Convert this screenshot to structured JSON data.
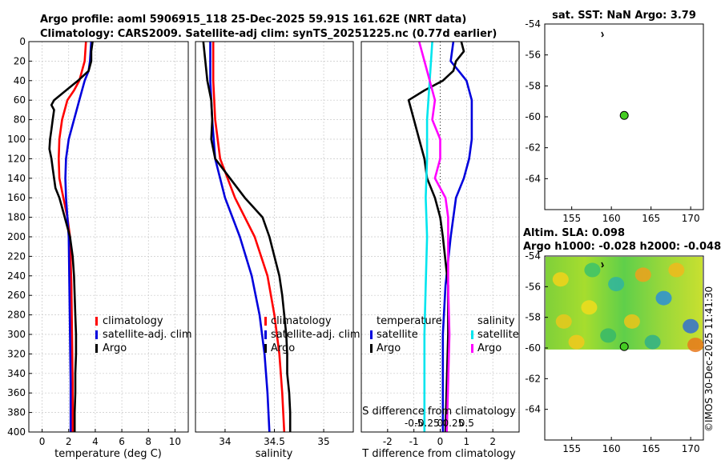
{
  "header": {
    "title_line1": "Argo profile: aoml 5906915_118 25-Dec-2025 59.91S 161.62E (NRT data)",
    "title_line2": "Climatology: CARS2009. Satellite-adj clim: synTS_20251225.nc (0.77d earlier)"
  },
  "colors": {
    "climatology": "#ff0000",
    "satellite": "#0000dd",
    "argo": "#000000",
    "sat_salinity": "#00e5ee",
    "clim_salinity": "#ff00ff",
    "marker": "#44cc22"
  },
  "watermark": "©IMOS 30-Dec-2025 11:41:30",
  "chart_data": [
    {
      "id": "temperature",
      "type": "line",
      "xlabel": "temperature (deg C)",
      "xlim": [
        -1,
        11
      ],
      "ylim": [
        0,
        400
      ],
      "y_inverted": true,
      "xticks": [
        0,
        2,
        4,
        6,
        8,
        10
      ],
      "xticklabels": [
        "0",
        "2",
        "4",
        "6",
        "8",
        "10"
      ],
      "yticks": [
        0,
        20,
        40,
        60,
        80,
        100,
        120,
        140,
        160,
        180,
        200,
        220,
        240,
        260,
        280,
        300,
        320,
        340,
        360,
        380,
        400
      ],
      "legend": {
        "position": "lower-right",
        "entries": [
          "climatology",
          "satellite-adj. clim",
          "Argo"
        ]
      },
      "series": [
        {
          "name": "climatology",
          "color": "#ff0000",
          "depth": [
            0,
            20,
            40,
            50,
            60,
            80,
            100,
            120,
            140,
            160,
            180,
            200,
            250,
            300,
            350,
            400
          ],
          "values": [
            3.3,
            3.2,
            2.8,
            2.4,
            1.9,
            1.5,
            1.3,
            1.25,
            1.3,
            1.6,
            1.9,
            2.1,
            2.2,
            2.25,
            2.3,
            2.3
          ]
        },
        {
          "name": "satellite-adj. clim",
          "color": "#0000dd",
          "depth": [
            0,
            20,
            30,
            40,
            60,
            80,
            100,
            120,
            140,
            160,
            180,
            200,
            250,
            300,
            350,
            400
          ],
          "values": [
            3.7,
            3.6,
            3.5,
            3.2,
            2.8,
            2.4,
            2.0,
            1.8,
            1.75,
            1.8,
            1.9,
            2.0,
            2.05,
            2.1,
            2.15,
            2.15
          ]
        },
        {
          "name": "Argo",
          "color": "#000000",
          "depth": [
            0,
            10,
            20,
            30,
            40,
            50,
            60,
            65,
            70,
            80,
            90,
            100,
            110,
            120,
            130,
            140,
            150,
            160,
            170,
            180,
            190,
            200,
            220,
            240,
            260,
            280,
            300,
            320,
            340,
            360,
            380,
            400
          ],
          "values": [
            3.8,
            3.7,
            3.7,
            3.5,
            2.7,
            1.8,
            0.9,
            0.7,
            0.9,
            0.8,
            0.7,
            0.6,
            0.55,
            0.7,
            0.8,
            0.9,
            1.0,
            1.3,
            1.5,
            1.7,
            1.9,
            2.1,
            2.3,
            2.4,
            2.45,
            2.5,
            2.55,
            2.55,
            2.5,
            2.5,
            2.45,
            2.45
          ]
        }
      ]
    },
    {
      "id": "salinity",
      "type": "line",
      "xlabel": "salinity",
      "xlim": [
        33.7,
        35.3
      ],
      "ylim": [
        0,
        400
      ],
      "y_inverted": true,
      "xticks": [
        34,
        34.5,
        35
      ],
      "xticklabels": [
        "34",
        "34.5",
        "35"
      ],
      "legend": {
        "position": "lower-right",
        "entries": [
          "climatology",
          "satellite-adj. clim",
          "Argo"
        ]
      },
      "series": [
        {
          "name": "climatology",
          "color": "#ff0000",
          "depth": [
            0,
            40,
            80,
            120,
            160,
            200,
            240,
            280,
            320,
            360,
            400
          ],
          "values": [
            33.88,
            33.88,
            33.9,
            33.95,
            34.1,
            34.3,
            34.43,
            34.5,
            34.55,
            34.58,
            34.6
          ]
        },
        {
          "name": "satellite-adj. clim",
          "color": "#0000dd",
          "depth": [
            0,
            40,
            80,
            120,
            160,
            200,
            240,
            280,
            320,
            360,
            400
          ],
          "values": [
            33.85,
            33.85,
            33.87,
            33.9,
            34.0,
            34.15,
            34.27,
            34.35,
            34.4,
            34.43,
            34.45
          ]
        },
        {
          "name": "Argo",
          "color": "#000000",
          "depth": [
            0,
            20,
            40,
            60,
            80,
            100,
            120,
            140,
            160,
            180,
            200,
            220,
            240,
            260,
            280,
            300,
            320,
            340,
            360,
            380,
            400
          ],
          "values": [
            33.78,
            33.8,
            33.82,
            33.86,
            33.87,
            33.86,
            33.9,
            34.05,
            34.2,
            34.38,
            34.45,
            34.5,
            34.55,
            34.58,
            34.6,
            34.62,
            34.63,
            34.63,
            34.65,
            34.66,
            34.66
          ]
        }
      ]
    },
    {
      "id": "difference",
      "type": "line",
      "xlabel": "T difference from climatology",
      "top_axis_label": "S difference from climatology",
      "xlim": [
        -3,
        3
      ],
      "ylim": [
        0,
        400
      ],
      "y_inverted": true,
      "xticks": [
        -2,
        -1,
        0,
        1,
        2
      ],
      "xticklabels": [
        "-2",
        "-1",
        "0",
        "1",
        "2"
      ],
      "s_ticks": [
        -1,
        -0.5,
        0,
        0.5,
        1
      ],
      "s_ticklabels": [
        "-0.5",
        "-0.25",
        "0",
        "0.25",
        "0.5"
      ],
      "legend": {
        "temperature_header": "temperature",
        "salinity_header": "salinity",
        "entries": [
          "satellite",
          "Argo",
          "satellite",
          "Argo"
        ]
      },
      "series": [
        {
          "name": "temperature satellite",
          "color": "#0000dd",
          "depth": [
            0,
            20,
            30,
            40,
            60,
            80,
            100,
            120,
            140,
            160,
            200,
            250,
            300,
            400
          ],
          "values": [
            0.5,
            0.4,
            0.7,
            1.0,
            1.2,
            1.2,
            1.2,
            1.1,
            0.9,
            0.6,
            0.4,
            0.2,
            0.1,
            0.1
          ]
        },
        {
          "name": "temperature Argo",
          "color": "#000000",
          "depth": [
            0,
            10,
            20,
            30,
            40,
            50,
            60,
            70,
            80,
            100,
            120,
            140,
            160,
            180,
            200,
            250,
            300,
            350,
            400
          ],
          "values": [
            0.8,
            0.9,
            0.6,
            0.5,
            0.1,
            -0.6,
            -1.2,
            -1.1,
            -1.0,
            -0.8,
            -0.6,
            -0.5,
            -0.2,
            0.0,
            0.1,
            0.3,
            0.3,
            0.25,
            0.2
          ]
        },
        {
          "name": "salinity satellite",
          "color": "#00e5ee",
          "depth": [
            0,
            40,
            80,
            120,
            160,
            200,
            250,
            300,
            350,
            400
          ],
          "values": [
            -0.3,
            -0.4,
            -0.5,
            -0.5,
            -0.55,
            -0.5,
            -0.55,
            -0.6,
            -0.6,
            -0.6
          ]
        },
        {
          "name": "salinity Argo",
          "color": "#ff00ff",
          "depth": [
            0,
            20,
            40,
            60,
            80,
            100,
            120,
            140,
            160,
            180,
            200,
            250,
            300,
            350,
            400
          ],
          "values": [
            -0.8,
            -0.6,
            -0.4,
            -0.2,
            -0.3,
            0.0,
            0.0,
            -0.2,
            0.2,
            0.3,
            0.3,
            0.3,
            0.35,
            0.3,
            0.25
          ]
        }
      ]
    },
    {
      "id": "sst_map",
      "type": "scatter",
      "title": "sat. SST: NaN Argo: 3.79",
      "xlim": [
        151.6,
        171.6
      ],
      "ylim": [
        -66,
        -54
      ],
      "xticks": [
        155,
        160,
        165,
        170
      ],
      "xticklabels": [
        "155",
        "160",
        "165",
        "170"
      ],
      "yticks": [
        -54,
        -56,
        -58,
        -60,
        -62,
        -64
      ],
      "yticklabels": [
        "-54",
        "-56",
        "-58",
        "-60",
        "-62",
        "-64"
      ],
      "points": [
        {
          "lon": 161.62,
          "lat": -59.91
        }
      ]
    },
    {
      "id": "sla_map",
      "type": "heatmap",
      "title_line1": "Altim. SLA: 0.098",
      "title_line2": "Argo h1000: -0.028 h2000: -0.048",
      "xlim": [
        151.6,
        171.6
      ],
      "ylim": [
        -66,
        -54
      ],
      "field_lat_range": [
        -60.1,
        -54
      ],
      "xticks": [
        155,
        160,
        165,
        170
      ],
      "xticklabels": [
        "155",
        "160",
        "165",
        "170"
      ],
      "yticks": [
        -54,
        -56,
        -58,
        -60,
        -62,
        -64
      ],
      "yticklabels": [
        "-54",
        "-56",
        "-58",
        "-60",
        "-62",
        "-64"
      ],
      "points": [
        {
          "lon": 161.62,
          "lat": -59.91
        }
      ]
    }
  ]
}
